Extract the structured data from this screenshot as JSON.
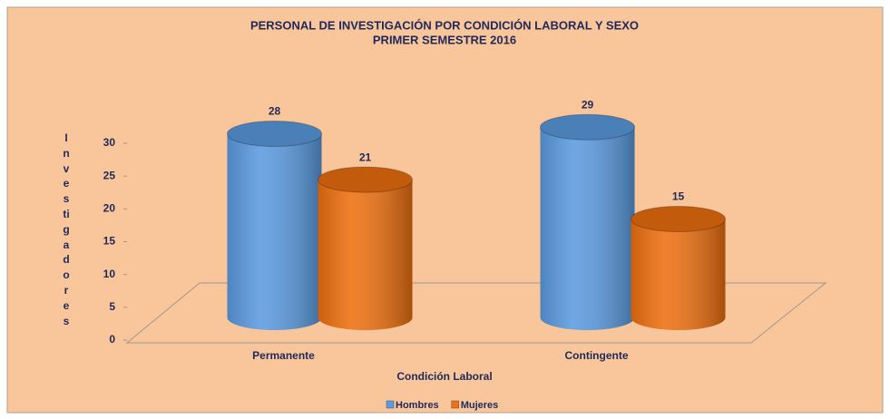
{
  "chart_data": {
    "type": "bar",
    "title": "PERSONAL DE INVESTIGACIÓN POR CONDICIÓN LABORAL Y SEXO",
    "subtitle": "PRIMER SEMESTRE 2016",
    "y_label": "Investigadores",
    "x_label": "Condición Laboral",
    "categories": [
      "Permanente",
      "Contingente"
    ],
    "series": [
      {
        "name": "Hombres",
        "color": "#5b9be0",
        "values": [
          28,
          29
        ]
      },
      {
        "name": "Mujeres",
        "color": "#ee7010",
        "values": [
          21,
          15
        ]
      }
    ],
    "ylim": [
      0,
      30
    ],
    "yticks": [
      0,
      5,
      10,
      15,
      20,
      25,
      30
    ],
    "legend": "bottom"
  }
}
